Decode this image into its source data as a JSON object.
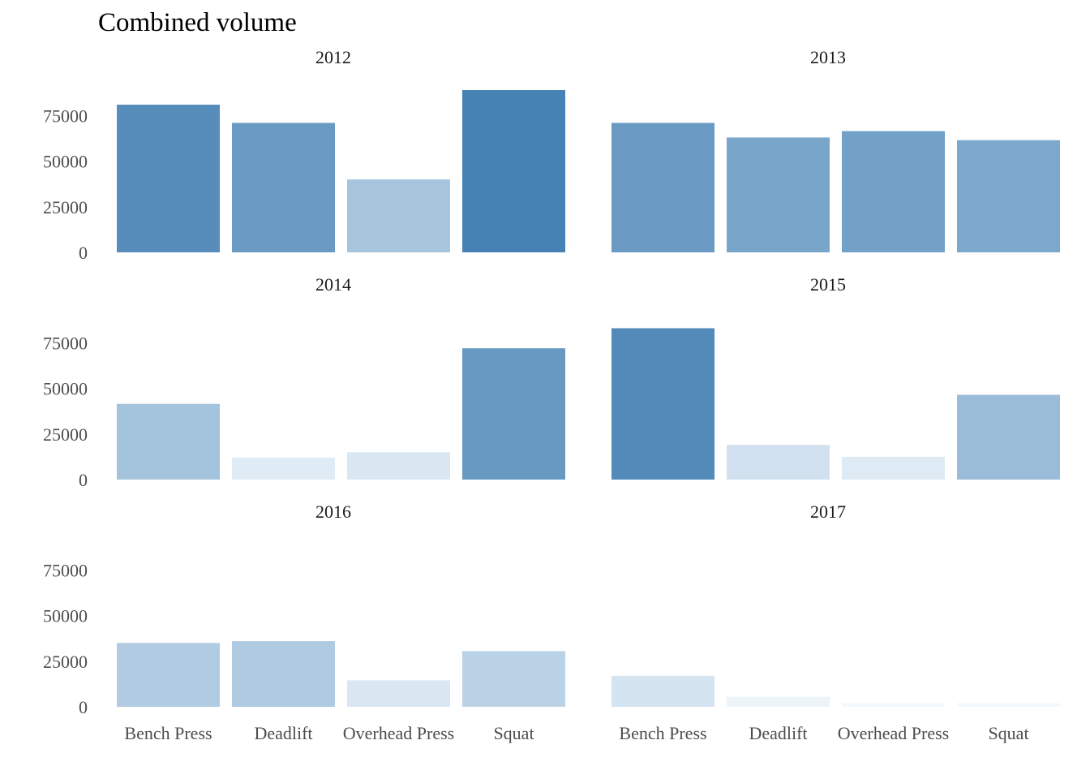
{
  "chart_data": {
    "type": "bar",
    "title": "Combined volume",
    "categories": [
      "Bench Press",
      "Deadlift",
      "Overhead Press",
      "Squat"
    ],
    "ylim": [
      0,
      89000
    ],
    "yticks": [
      0,
      25000,
      50000,
      75000
    ],
    "grid": false,
    "facets": [
      {
        "label": "2012",
        "values": [
          81000,
          71000,
          40000,
          89000
        ]
      },
      {
        "label": "2013",
        "values": [
          71000,
          63000,
          66500,
          61500
        ]
      },
      {
        "label": "2014",
        "values": [
          41500,
          12000,
          15000,
          72000
        ]
      },
      {
        "label": "2015",
        "values": [
          83000,
          19000,
          12500,
          46500
        ]
      },
      {
        "label": "2016",
        "values": [
          35000,
          36000,
          14500,
          30500
        ]
      },
      {
        "label": "2017",
        "values": [
          17000,
          5500,
          2000,
          2000
        ]
      }
    ],
    "fill_low": "#f7fbff",
    "fill_high": "#4682b4"
  }
}
